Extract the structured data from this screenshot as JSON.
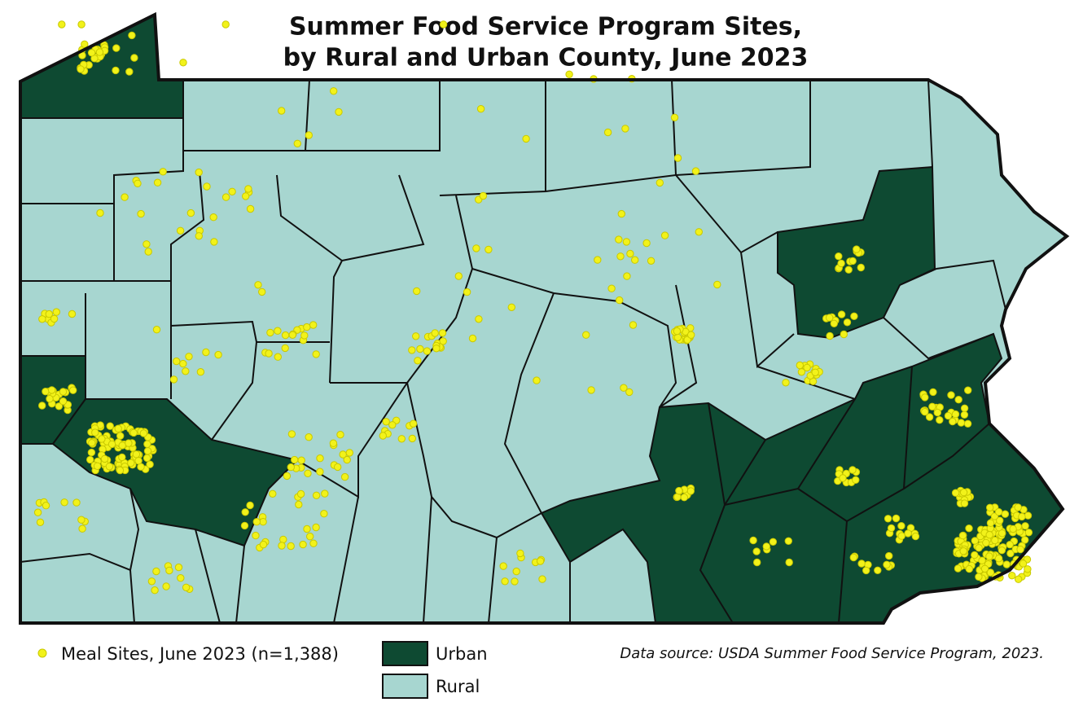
{
  "title": [
    "Summer Food Service Program Sites,",
    "by Rural and Urban County, June 2023"
  ],
  "legend": {
    "sites": "Meal Sites, June 2023 (n=1,388)",
    "urban": "Urban",
    "rural": "Rural"
  },
  "source": "Data source: USDA Summer Food Service Program, 2023."
}
